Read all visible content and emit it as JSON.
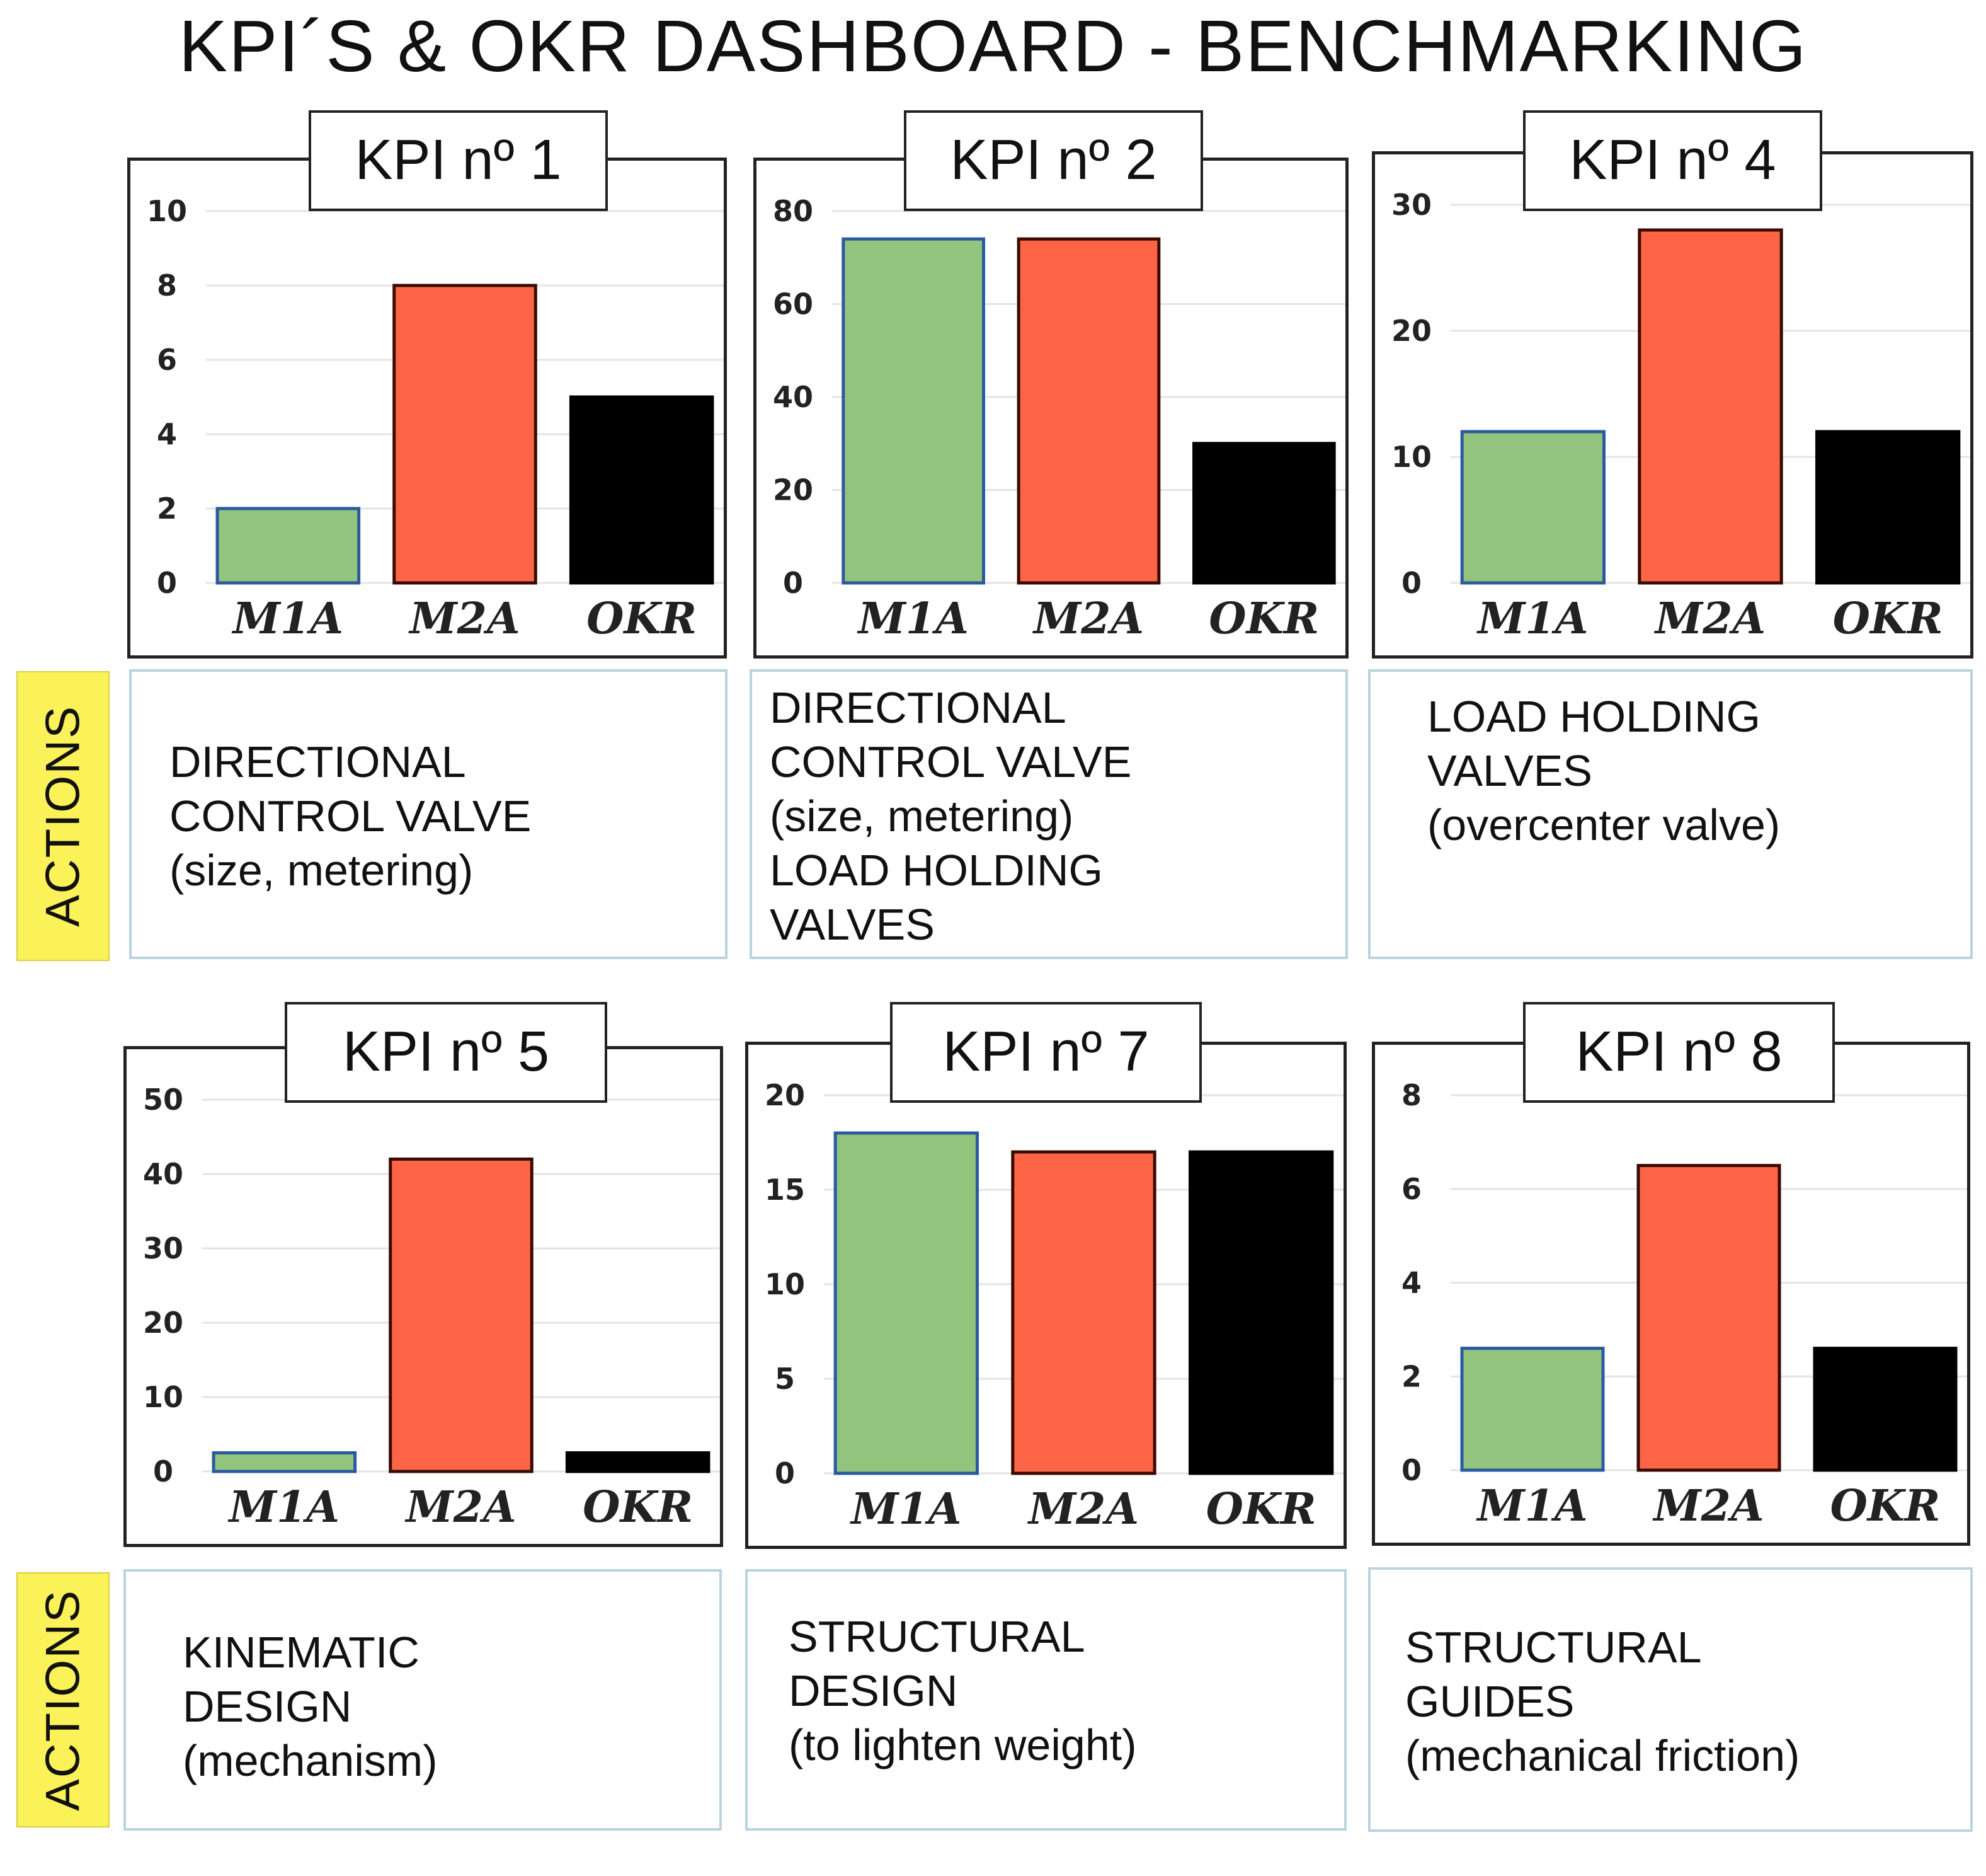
{
  "title": "KPI´S  & OKR DASHBOARD - BENCHMARKING",
  "actions_label": "ACTIONS",
  "colors": {
    "m1a": "#93c47d",
    "m1a_border": "#2a5aa0",
    "m2a": "#fe6547",
    "m2a_border": "#3a0b00",
    "okr": "#000000"
  },
  "chart_data": [
    {
      "type": "bar",
      "title": "KPI nº 1",
      "categories": [
        "M1A",
        "M2A",
        "OKR"
      ],
      "values": [
        2,
        8,
        5
      ],
      "ylim": [
        0,
        10
      ],
      "yticks": [
        0,
        2,
        4,
        6,
        8,
        10
      ]
    },
    {
      "type": "bar",
      "title": "KPI nº 2",
      "categories": [
        "M1A",
        "M2A",
        "OKR"
      ],
      "values": [
        74,
        74,
        30
      ],
      "ylim": [
        0,
        80
      ],
      "yticks": [
        0,
        20,
        40,
        60,
        80
      ]
    },
    {
      "type": "bar",
      "title": "KPI nº 4",
      "categories": [
        "M1A",
        "M2A",
        "OKR"
      ],
      "values": [
        12,
        28,
        12
      ],
      "ylim": [
        0,
        30
      ],
      "yticks": [
        0,
        10,
        20,
        30
      ]
    },
    {
      "type": "bar",
      "title": "KPI nº 5",
      "categories": [
        "M1A",
        "M2A",
        "OKR"
      ],
      "values": [
        2.5,
        42,
        2.5
      ],
      "ylim": [
        0,
        50
      ],
      "yticks": [
        0,
        10,
        20,
        30,
        40,
        50
      ]
    },
    {
      "type": "bar",
      "title": "KPI nº 7",
      "categories": [
        "M1A",
        "M2A",
        "OKR"
      ],
      "values": [
        18,
        17,
        17
      ],
      "ylim": [
        0,
        20
      ],
      "yticks": [
        0,
        5,
        10,
        15,
        20
      ]
    },
    {
      "type": "bar",
      "title": "KPI nº 8",
      "categories": [
        "M1A",
        "M2A",
        "OKR"
      ],
      "values": [
        2.6,
        6.5,
        2.6
      ],
      "ylim": [
        0,
        8
      ],
      "yticks": [
        0,
        2,
        4,
        6,
        8
      ]
    }
  ],
  "actions": [
    [
      "DIRECTIONAL",
      "CONTROL VALVE",
      "(size, metering)"
    ],
    [
      "DIRECTIONAL",
      "CONTROL VALVE",
      "(size, metering)",
      "LOAD HOLDING",
      "VALVES"
    ],
    [
      "LOAD HOLDING",
      "VALVES",
      "(overcenter valve)"
    ],
    [
      "KINEMATIC",
      "DESIGN",
      "(mechanism)"
    ],
    [
      "STRUCTURAL",
      "DESIGN",
      "(to lighten weight)"
    ],
    [
      "STRUCTURAL",
      "GUIDES",
      "(mechanical friction)"
    ]
  ]
}
